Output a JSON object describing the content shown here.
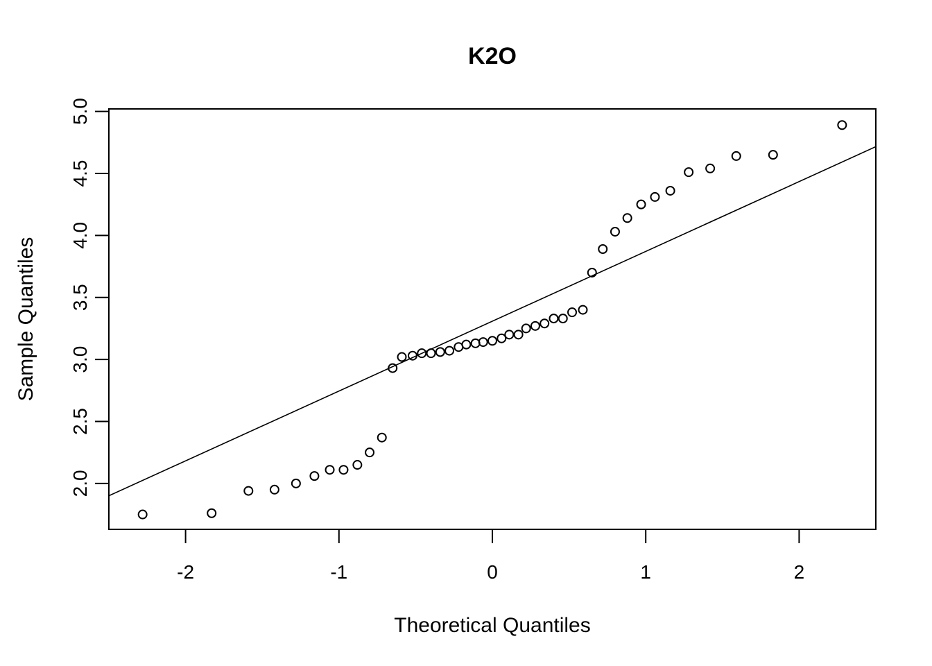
{
  "chart_data": {
    "type": "scatter",
    "title": "K2O",
    "xlabel": "Theoretical Quantiles",
    "ylabel": "Sample Quantiles",
    "xlim": [
      -2.5,
      2.5
    ],
    "ylim": [
      1.63,
      5.02
    ],
    "x_ticks": [
      -2,
      -1,
      0,
      1,
      2
    ],
    "x_tick_labels": [
      "-2",
      "-1",
      "0",
      "1",
      "2"
    ],
    "y_ticks": [
      2.0,
      2.5,
      3.0,
      3.5,
      4.0,
      4.5,
      5.0
    ],
    "y_tick_labels": [
      "2.0",
      "2.5",
      "3.0",
      "3.5",
      "4.0",
      "4.5",
      "5.0"
    ],
    "grid": false,
    "points": {
      "x": [
        -2.28,
        -1.83,
        -1.59,
        -1.42,
        -1.28,
        -1.16,
        -1.06,
        -0.97,
        -0.88,
        -0.8,
        -0.72,
        -0.65,
        -0.59,
        -0.52,
        -0.46,
        -0.4,
        -0.34,
        -0.28,
        -0.22,
        -0.17,
        -0.11,
        -0.06,
        0.0,
        0.06,
        0.11,
        0.17,
        0.22,
        0.28,
        0.34,
        0.4,
        0.46,
        0.52,
        0.59,
        0.65,
        0.72,
        0.8,
        0.88,
        0.97,
        1.06,
        1.16,
        1.28,
        1.42,
        1.59,
        1.83,
        2.28
      ],
      "y": [
        1.75,
        1.76,
        1.94,
        1.95,
        2.0,
        2.06,
        2.11,
        2.11,
        2.15,
        2.25,
        2.37,
        2.93,
        3.02,
        3.03,
        3.05,
        3.05,
        3.06,
        3.07,
        3.1,
        3.12,
        3.13,
        3.14,
        3.15,
        3.17,
        3.2,
        3.2,
        3.25,
        3.27,
        3.29,
        3.33,
        3.33,
        3.38,
        3.4,
        3.7,
        3.89,
        4.03,
        4.14,
        4.25,
        4.31,
        4.36,
        4.51,
        4.54,
        4.64,
        4.65,
        4.89
      ]
    },
    "reference_line": {
      "intercept": 3.308,
      "slope": 0.563
    }
  }
}
